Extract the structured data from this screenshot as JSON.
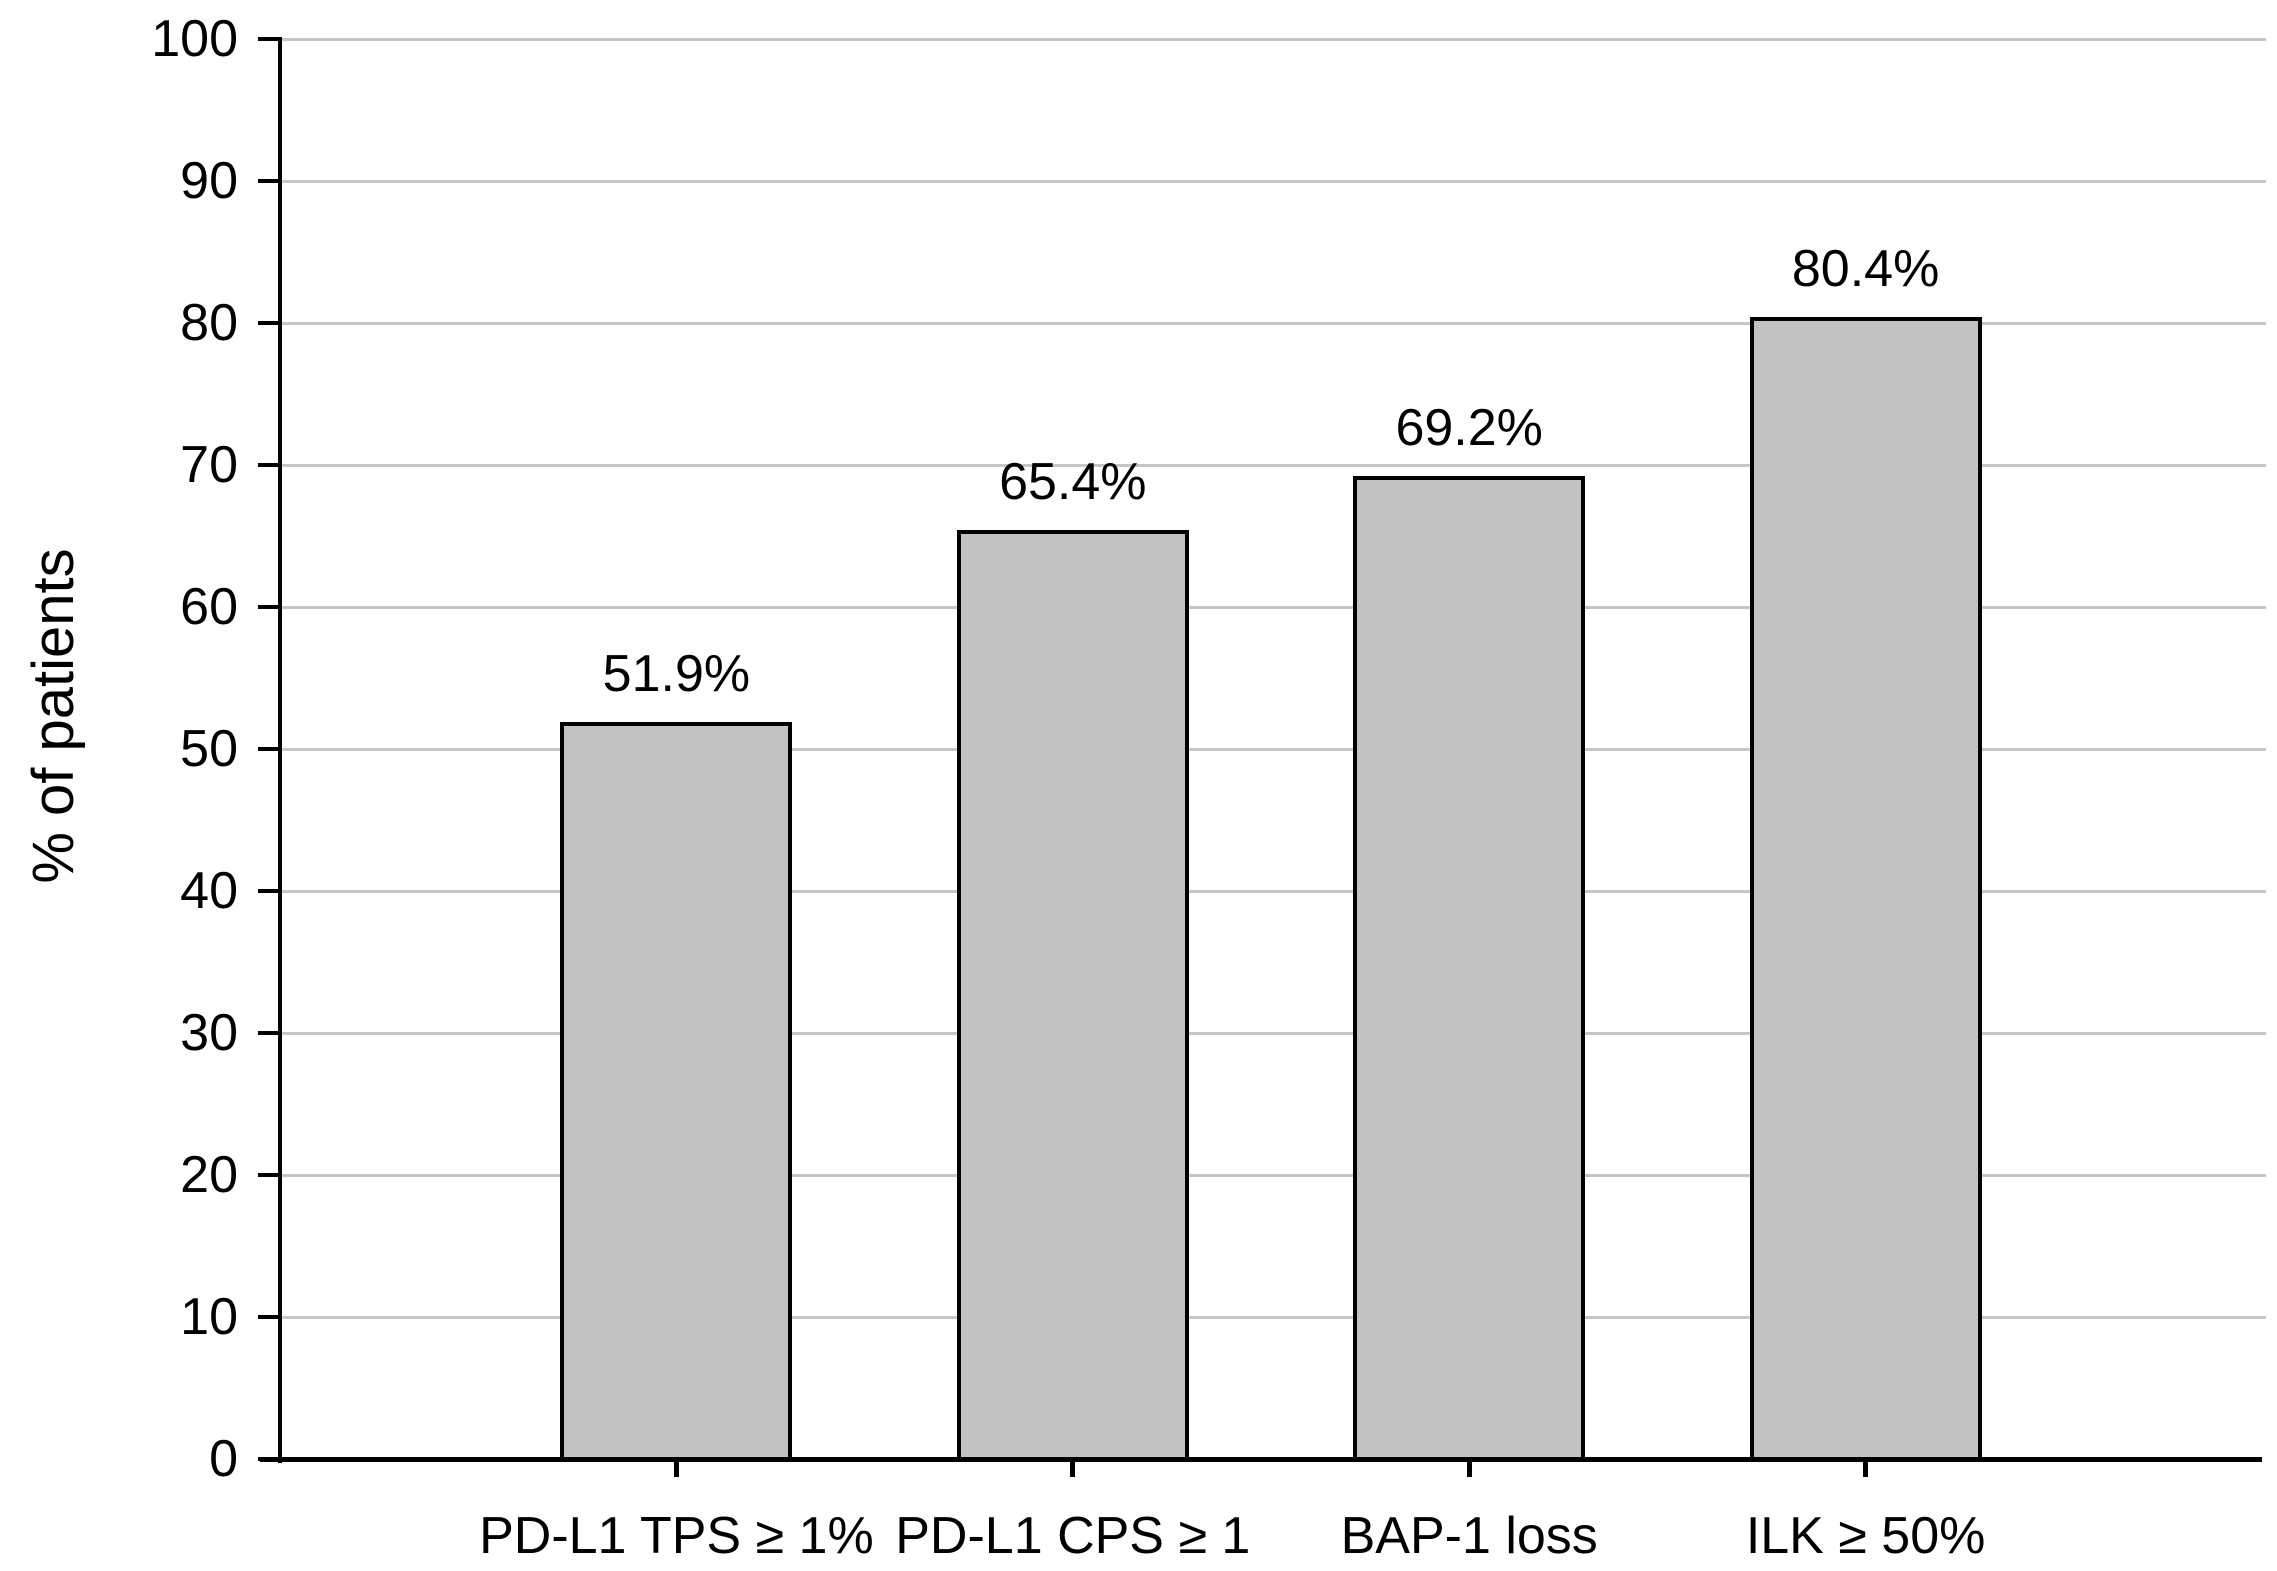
{
  "chart_data": {
    "type": "bar",
    "title": "",
    "xlabel": "",
    "ylabel": "% of patients",
    "categories": [
      "PD-L1 TPS ≥ 1%",
      "PD-L1 CPS ≥ 1",
      "BAP-1 loss",
      "ILK ≥ 50%"
    ],
    "values": [
      51.9,
      65.4,
      69.2,
      80.4
    ],
    "value_labels": [
      "51.9%",
      "65.4%",
      "69.2%",
      "80.4%"
    ],
    "ylim": [
      0,
      100
    ],
    "y_ticks": [
      0,
      10,
      20,
      30,
      40,
      50,
      60,
      70,
      80,
      90,
      100
    ],
    "grid": "horizontal",
    "legend_position": "none",
    "colors": {
      "bar_fill": "#c2c2c2",
      "bar_border": "#000000",
      "gridline": "#c6c6c6",
      "axis": "#000000",
      "text": "#000000",
      "background": "#ffffff"
    }
  }
}
